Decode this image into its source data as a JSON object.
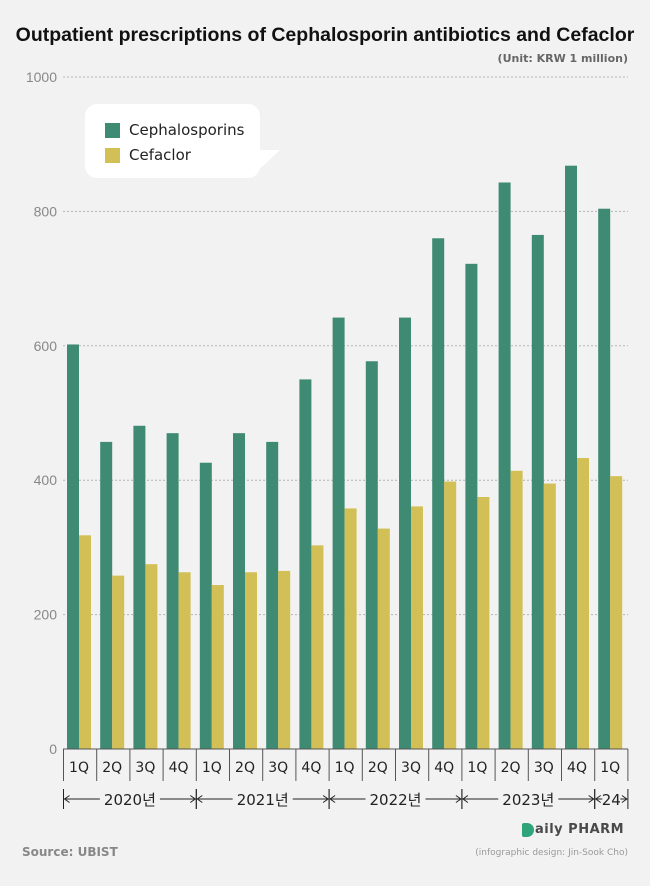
{
  "title": "Outpatient prescriptions of Cephalosporin antibiotics and Cefaclor",
  "unit": "(Unit: KRW 1 million)",
  "source": "Source: UBIST",
  "credit": "(infographic design: Jin-Sook Cho)",
  "logo_text": "aily PHARM",
  "colors": {
    "cephalosporins": "#3f8a72",
    "cefaclor": "#d2bf55",
    "grid": "#b5b5b5",
    "axis": "#555555"
  },
  "legend": [
    {
      "label": "Cephalosporins",
      "color": "#3f8a72"
    },
    {
      "label": "Cefaclor",
      "color": "#d2bf55"
    }
  ],
  "chart_data": {
    "type": "bar",
    "categories": [
      "1Q",
      "2Q",
      "3Q",
      "4Q",
      "1Q",
      "2Q",
      "3Q",
      "4Q",
      "1Q",
      "2Q",
      "3Q",
      "4Q",
      "1Q",
      "2Q",
      "3Q",
      "4Q",
      "1Q"
    ],
    "years": [
      {
        "label": "2020년",
        "count": 4
      },
      {
        "label": "2021년",
        "count": 4
      },
      {
        "label": "2022년",
        "count": 4
      },
      {
        "label": "2023년",
        "count": 4
      },
      {
        "label": "24",
        "count": 1
      }
    ],
    "series": [
      {
        "name": "Cephalosporins",
        "values": [
          602,
          457,
          481,
          470,
          426,
          470,
          457,
          550,
          642,
          577,
          642,
          760,
          722,
          843,
          765,
          868,
          804
        ]
      },
      {
        "name": "Cefaclor",
        "values": [
          318,
          258,
          275,
          263,
          244,
          263,
          265,
          303,
          358,
          328,
          361,
          398,
          375,
          414,
          395,
          433,
          406
        ]
      }
    ],
    "yticks": [
      0,
      200,
      400,
      600,
      800,
      1000
    ],
    "ylim": [
      0,
      1000
    ],
    "grid": true,
    "legend_position": "top-left"
  }
}
